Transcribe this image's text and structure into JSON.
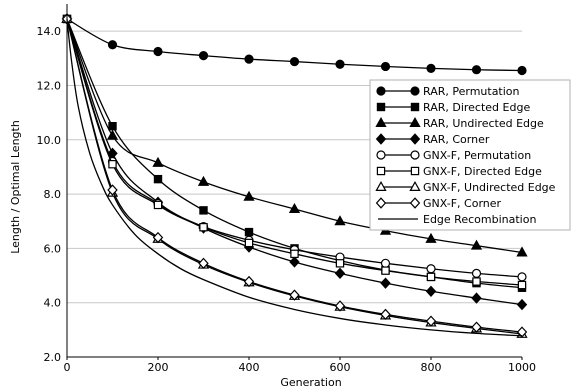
{
  "chart_data": {
    "type": "line",
    "title": "",
    "xlabel": "Generation",
    "ylabel": "Length / Optimal Length",
    "xlim": [
      0,
      1000
    ],
    "ylim": [
      2.0,
      15.0
    ],
    "xticks": [
      0,
      200,
      400,
      600,
      800,
      1000
    ],
    "yticks": [
      2.0,
      4.0,
      6.0,
      8.0,
      10.0,
      12.0,
      14.0
    ],
    "xtick_labels": [
      "0",
      "200",
      "400",
      "600",
      "800",
      "1000"
    ],
    "ytick_labels": [
      "2.0",
      "4.0",
      "6.0",
      "8.0",
      "10.0",
      "12.0",
      "14.0"
    ],
    "grid": "horizontal",
    "legend_position": "right",
    "x": [
      0,
      100,
      200,
      300,
      400,
      500,
      600,
      700,
      800,
      900,
      1000
    ],
    "series": [
      {
        "name": "RAR, Permutation",
        "marker": "circle-filled",
        "values": [
          14.45,
          13.5,
          13.25,
          13.1,
          12.97,
          12.88,
          12.78,
          12.7,
          12.63,
          12.58,
          12.55
        ]
      },
      {
        "name": "RAR, Directed Edge",
        "marker": "square-filled",
        "values": [
          14.45,
          10.5,
          8.55,
          7.4,
          6.6,
          6.0,
          5.55,
          5.2,
          4.95,
          4.72,
          4.55
        ]
      },
      {
        "name": "RAR, Undirected Edge",
        "marker": "triangle-filled",
        "values": [
          14.45,
          10.15,
          9.15,
          8.45,
          7.9,
          7.45,
          7.0,
          6.65,
          6.35,
          6.1,
          5.85
        ]
      },
      {
        "name": "RAR, Corner",
        "marker": "diamond-filled",
        "values": [
          14.45,
          9.5,
          7.7,
          6.75,
          6.05,
          5.5,
          5.08,
          4.72,
          4.42,
          4.17,
          3.93
        ]
      },
      {
        "name": "GNX-F, Permutation",
        "marker": "circle-open",
        "values": [
          14.45,
          9.2,
          7.65,
          6.8,
          6.3,
          5.95,
          5.68,
          5.45,
          5.25,
          5.08,
          4.95
        ]
      },
      {
        "name": "GNX-F, Directed Edge",
        "marker": "square-open",
        "values": [
          14.45,
          9.1,
          7.6,
          6.78,
          6.2,
          5.8,
          5.45,
          5.18,
          4.95,
          4.78,
          4.65
        ]
      },
      {
        "name": "GNX-F, Undirected Edge",
        "marker": "triangle-open",
        "values": [
          14.45,
          8.05,
          6.35,
          5.4,
          4.75,
          4.25,
          3.85,
          3.53,
          3.27,
          3.05,
          2.85
        ]
      },
      {
        "name": "GNX-F, Corner",
        "marker": "diamond-open",
        "values": [
          14.45,
          8.15,
          6.4,
          5.45,
          4.78,
          4.28,
          3.88,
          3.57,
          3.32,
          3.1,
          2.92
        ]
      },
      {
        "name": "Edge Recombination",
        "marker": "none",
        "x": [
          0,
          10,
          25,
          50,
          75,
          100,
          150,
          200,
          250,
          300,
          400,
          500,
          600,
          700,
          800,
          900,
          1000
        ],
        "values": [
          14.45,
          12.9,
          11.2,
          9.5,
          8.4,
          7.6,
          6.5,
          5.8,
          5.25,
          4.85,
          4.2,
          3.75,
          3.42,
          3.18,
          3.0,
          2.87,
          2.78
        ]
      }
    ]
  }
}
